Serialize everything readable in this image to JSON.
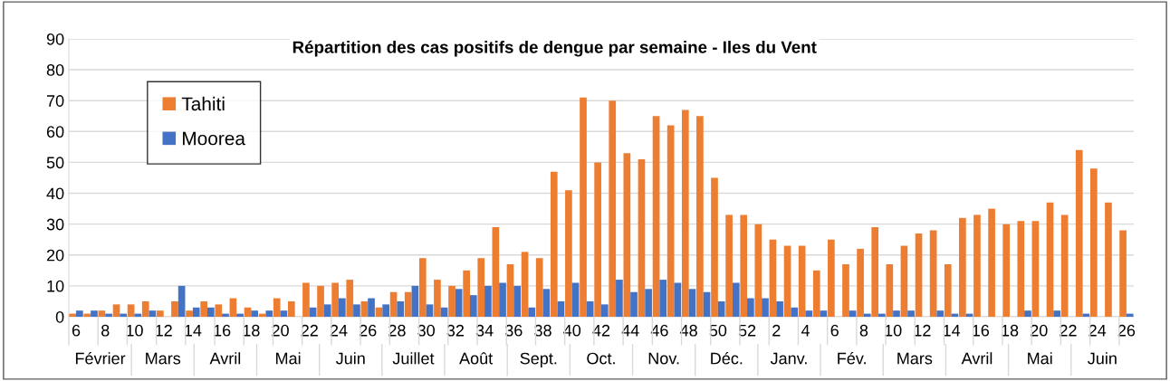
{
  "chart_data": {
    "type": "bar",
    "title": "Répartition des cas positifs de dengue par semaine - Iles du Vent",
    "categories": [
      "6",
      null,
      "8",
      null,
      "10",
      null,
      "12",
      null,
      "14",
      null,
      "16",
      null,
      "18",
      null,
      "20",
      null,
      "22",
      null,
      "24",
      null,
      "26",
      null,
      "28",
      null,
      "30",
      null,
      "32",
      null,
      "34",
      null,
      "36",
      null,
      "38",
      null,
      "40",
      null,
      "42",
      null,
      "44",
      null,
      "46",
      null,
      "48",
      null,
      "50",
      null,
      "52",
      null,
      "2",
      null,
      "4",
      null,
      "6",
      null,
      "8",
      null,
      "10",
      null,
      "12",
      null,
      "14",
      null,
      "16",
      null,
      "18",
      null,
      "20",
      null,
      "22",
      null,
      "24",
      null,
      "26"
    ],
    "series": [
      {
        "name": "Tahiti",
        "color": "#ed7d31",
        "values": [
          1,
          1,
          2,
          4,
          4,
          5,
          2,
          5,
          2,
          5,
          4,
          6,
          3,
          1,
          6,
          5,
          11,
          10,
          11,
          12,
          5,
          3,
          8,
          8,
          19,
          12,
          10,
          15,
          19,
          29,
          17,
          21,
          19,
          47,
          41,
          71,
          50,
          70,
          53,
          51,
          65,
          62,
          67,
          65,
          45,
          33,
          33,
          30,
          25,
          23,
          23,
          15,
          25,
          17,
          22,
          29,
          17,
          23,
          27,
          28,
          17,
          32,
          33,
          35,
          30,
          31,
          31,
          37,
          33,
          54,
          48,
          37,
          28
        ]
      },
      {
        "name": "Moorea",
        "color": "#4472c4",
        "values": [
          2,
          2,
          1,
          1,
          1,
          2,
          0,
          10,
          3,
          3,
          1,
          1,
          2,
          2,
          2,
          0,
          3,
          4,
          6,
          4,
          6,
          4,
          5,
          10,
          4,
          3,
          9,
          7,
          10,
          11,
          10,
          3,
          9,
          5,
          11,
          5,
          4,
          12,
          8,
          9,
          12,
          11,
          9,
          8,
          5,
          11,
          6,
          6,
          5,
          3,
          2,
          2,
          0,
          2,
          1,
          1,
          2,
          2,
          0,
          2,
          1,
          1,
          0,
          0,
          0,
          2,
          0,
          2,
          0,
          1,
          0,
          0,
          1
        ]
      }
    ],
    "annotations": [
      "Février",
      "Mars",
      "Avril",
      "Mai",
      "Juin",
      "Juillet",
      "Août",
      "Sept.",
      "Oct.",
      "Nov.",
      "Déc.",
      "Janv.",
      "Fév.",
      "Mars",
      "Avril",
      "Mai",
      "Juin"
    ],
    "ylim": [
      0,
      90
    ],
    "yticks": [
      0,
      10,
      20,
      30,
      40,
      50,
      60,
      70,
      80,
      90
    ],
    "grid": "y",
    "legend": "top left"
  }
}
